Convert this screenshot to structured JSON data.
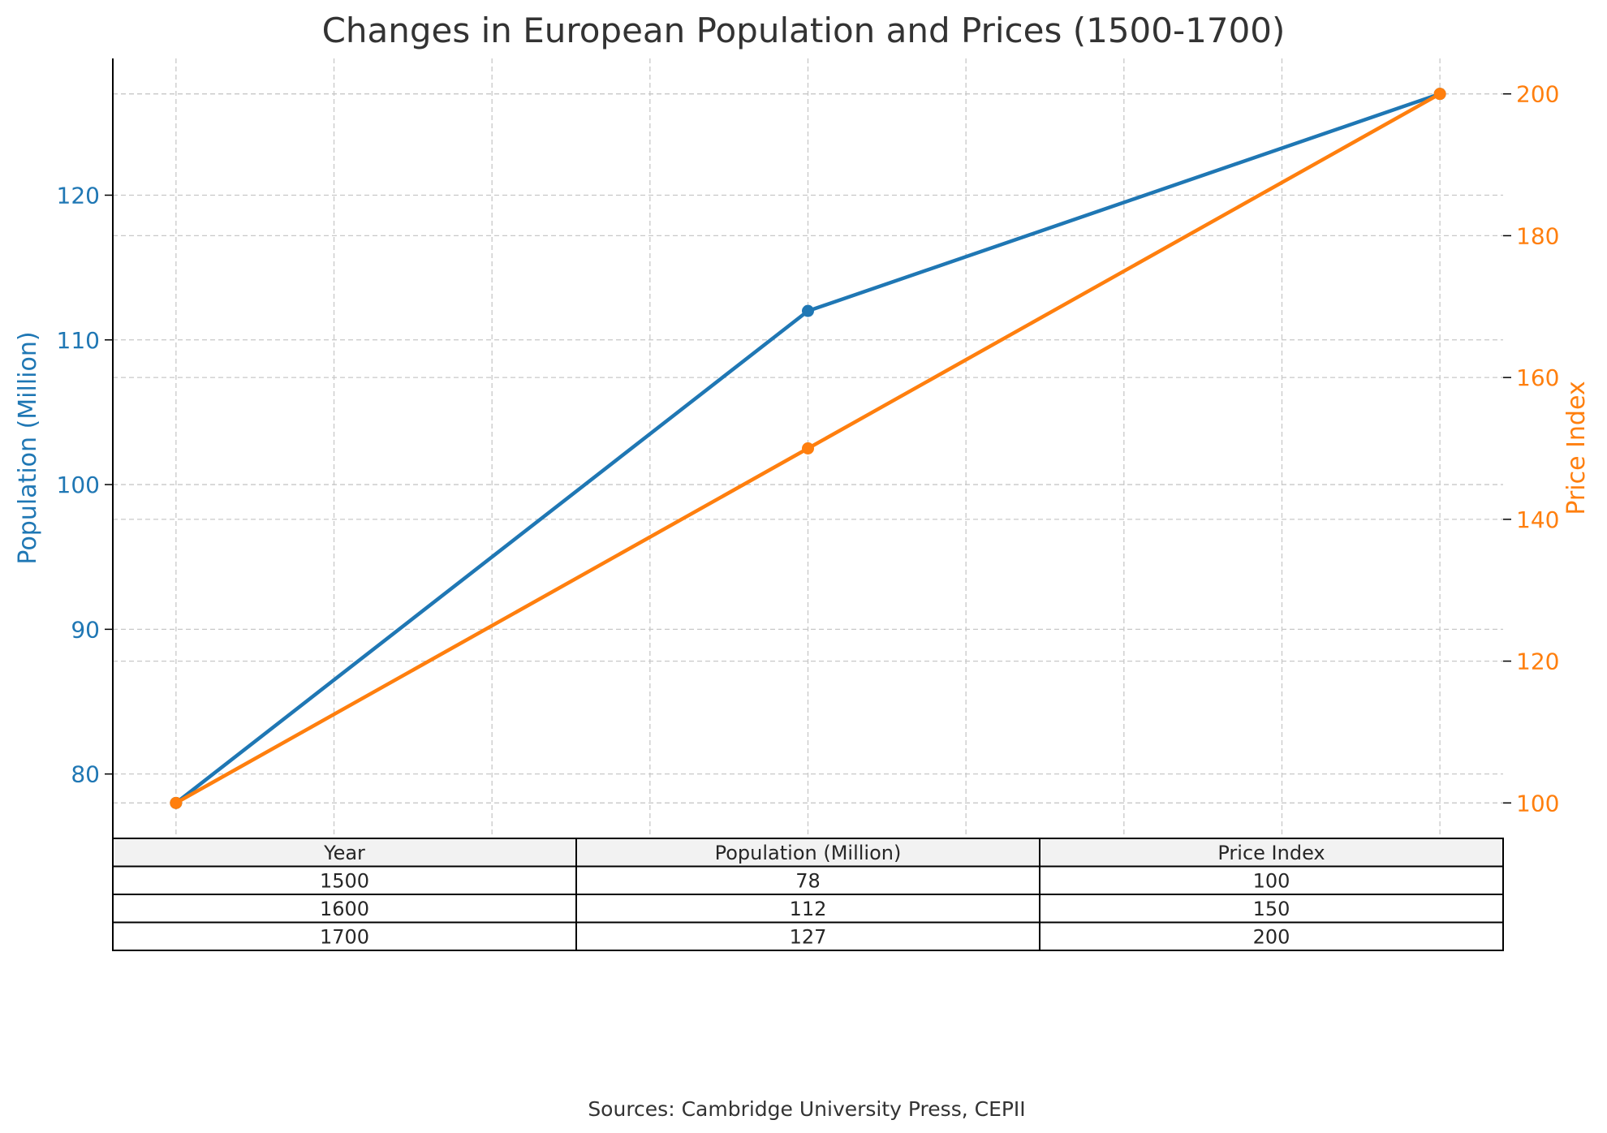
{
  "chart_data": {
    "type": "line",
    "title": "Changes in European Population and Prices (1500-1700)",
    "x": [
      1500,
      1600,
      1700
    ],
    "xlim": [
      1490,
      1710
    ],
    "series": [
      {
        "name": "Population (Million)",
        "axis": "left",
        "color": "#1f77b4",
        "values": [
          78,
          112,
          127
        ]
      },
      {
        "name": "Price Index",
        "axis": "right",
        "color": "#ff7f0e",
        "values": [
          100,
          150,
          200
        ]
      }
    ],
    "y_left": {
      "label": "Population (Million)",
      "color": "#1f77b4",
      "ylim": [
        75.55,
        129.45
      ],
      "ticks": [
        80,
        90,
        100,
        110,
        120
      ],
      "grid": true
    },
    "y_right": {
      "label": "Price Index",
      "color": "#ff7f0e",
      "ylim": [
        95,
        205
      ],
      "ticks": [
        100,
        120,
        140,
        160,
        180,
        200
      ],
      "grid": true
    },
    "x_grid": true,
    "table": {
      "headers": [
        "Year",
        "Population (Million)",
        "Price Index"
      ],
      "rows": [
        [
          "1500",
          "78",
          "100"
        ],
        [
          "1600",
          "112",
          "150"
        ],
        [
          "1700",
          "127",
          "200"
        ]
      ]
    },
    "source": "Sources: Cambridge University Press, CEPII"
  }
}
